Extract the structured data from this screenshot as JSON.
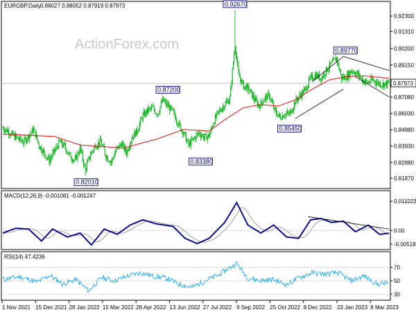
{
  "header": {
    "symbol": "EURGBP,Daily",
    "ohlc": "0.88027 0.88052 0.87919 0.87973",
    "watermark": "ActionForex.com"
  },
  "colors": {
    "candle_up": "#00af0f",
    "candle_down": "#00af0f",
    "sma": "#e01010",
    "macd_main": "#0a0a8c",
    "macd_signal": "#a0a0a0",
    "rsi": "#00a0ff",
    "trendline": "#000000",
    "box": "#000080",
    "grid_level": "#bbbbbb",
    "current_price": "#c0c0c0"
  },
  "chart_data": [
    {
      "type": "candlestick",
      "title": "EURGBP,Daily",
      "ylim": [
        0.8124,
        0.932
      ],
      "yticks": [
        "0.92300",
        "0.91310",
        "0.90200",
        "0.89150",
        "0.87080",
        "0.86030",
        "0.84980",
        "0.83930",
        "0.82880",
        "0.81870"
      ],
      "current_price_label": "0.87973",
      "current_price": 0.87973,
      "x_ticks": [
        "1 Nov 2021",
        "15 Dec 2021",
        "28 Jan 2022",
        "15 Mar 2022",
        "28 Apr 2022",
        "13 Jun 2022",
        "27 Jul 2022",
        "9 Sep 2022",
        "25 Oct 2022",
        "8 Dec 2022",
        "23 Jan 2023",
        "8 Mar 2023"
      ],
      "annotations": [
        {
          "text": "0.92670",
          "value": 0.9267
        },
        {
          "text": "0.89770",
          "value": 0.8977
        },
        {
          "text": "0.87200",
          "value": 0.872
        },
        {
          "text": "0.85450",
          "value": 0.8545
        },
        {
          "text": "0.83380",
          "value": 0.8338
        },
        {
          "text": "0.82010",
          "value": 0.8201
        }
      ],
      "price_anchors": [
        [
          0,
          0.851
        ],
        [
          6,
          0.849
        ],
        [
          12,
          0.846
        ],
        [
          18,
          0.844
        ],
        [
          24,
          0.842
        ],
        [
          30,
          0.846
        ],
        [
          36,
          0.85
        ],
        [
          42,
          0.84
        ],
        [
          48,
          0.835
        ],
        [
          54,
          0.83
        ],
        [
          60,
          0.836
        ],
        [
          66,
          0.842
        ],
        [
          72,
          0.839
        ],
        [
          78,
          0.833
        ],
        [
          84,
          0.83
        ],
        [
          90,
          0.838
        ],
        [
          96,
          0.824
        ],
        [
          102,
          0.834
        ],
        [
          108,
          0.84
        ],
        [
          114,
          0.842
        ],
        [
          120,
          0.833
        ],
        [
          126,
          0.829
        ],
        [
          132,
          0.837
        ],
        [
          138,
          0.841
        ],
        [
          144,
          0.835
        ],
        [
          150,
          0.845
        ],
        [
          156,
          0.849
        ],
        [
          162,
          0.858
        ],
        [
          168,
          0.862
        ],
        [
          174,
          0.864
        ],
        [
          180,
          0.86
        ],
        [
          186,
          0.869
        ],
        [
          192,
          0.865
        ],
        [
          198,
          0.861
        ],
        [
          204,
          0.854
        ],
        [
          210,
          0.848
        ],
        [
          216,
          0.84
        ],
        [
          222,
          0.844
        ],
        [
          228,
          0.848
        ],
        [
          234,
          0.845
        ],
        [
          240,
          0.846
        ],
        [
          246,
          0.856
        ],
        [
          252,
          0.862
        ],
        [
          258,
          0.866
        ],
        [
          264,
          0.87
        ],
        [
          270,
          0.905
        ],
        [
          274,
          0.885
        ],
        [
          280,
          0.878
        ],
        [
          286,
          0.876
        ],
        [
          292,
          0.87
        ],
        [
          298,
          0.865
        ],
        [
          304,
          0.87
        ],
        [
          310,
          0.872
        ],
        [
          316,
          0.862
        ],
        [
          322,
          0.858
        ],
        [
          328,
          0.86
        ],
        [
          334,
          0.86
        ],
        [
          340,
          0.868
        ],
        [
          346,
          0.872
        ],
        [
          352,
          0.876
        ],
        [
          358,
          0.883
        ],
        [
          364,
          0.885
        ],
        [
          370,
          0.883
        ],
        [
          376,
          0.888
        ],
        [
          382,
          0.892
        ],
        [
          388,
          0.896
        ],
        [
          394,
          0.883
        ],
        [
          400,
          0.884
        ],
        [
          406,
          0.888
        ],
        [
          412,
          0.886
        ],
        [
          418,
          0.882
        ],
        [
          424,
          0.88
        ],
        [
          430,
          0.882
        ],
        [
          436,
          0.88
        ],
        [
          442,
          0.879
        ],
        [
          448,
          0.8797
        ]
      ],
      "sma_anchors": [
        [
          0,
          0.847
        ],
        [
          60,
          0.8455
        ],
        [
          90,
          0.84
        ],
        [
          140,
          0.838
        ],
        [
          180,
          0.844
        ],
        [
          210,
          0.85
        ],
        [
          240,
          0.849
        ],
        [
          260,
          0.857
        ],
        [
          280,
          0.864
        ],
        [
          300,
          0.866
        ],
        [
          320,
          0.865
        ],
        [
          340,
          0.869
        ],
        [
          360,
          0.876
        ],
        [
          380,
          0.882
        ],
        [
          400,
          0.884
        ],
        [
          420,
          0.8845
        ],
        [
          449,
          0.883
        ]
      ],
      "channel_upper": [
        [
          360,
          0.881
        ],
        [
          396,
          0.897
        ]
      ],
      "channel_lower": [
        [
          340,
          0.857
        ],
        [
          396,
          0.876
        ]
      ],
      "falling_upper": [
        [
          396,
          0.897
        ],
        [
          449,
          0.888
        ]
      ],
      "falling_lower": [
        [
          410,
          0.884
        ],
        [
          449,
          0.871
        ]
      ]
    },
    {
      "type": "line",
      "title": "MACD(12,26,9) -0.001081 -0.001247",
      "ylim": [
        -0.007,
        0.0116
      ],
      "yticks": [
        "0.011023",
        "0.00",
        "-0.005182"
      ],
      "macd_anchors": [
        [
          0,
          -0.001
        ],
        [
          15,
          0.0008
        ],
        [
          30,
          0.0005
        ],
        [
          45,
          -0.004
        ],
        [
          58,
          0.0005
        ],
        [
          75,
          -0.0025
        ],
        [
          90,
          -0.001
        ],
        [
          103,
          -0.0055
        ],
        [
          118,
          0.0005
        ],
        [
          133,
          -0.0015
        ],
        [
          148,
          0.002
        ],
        [
          163,
          0.004
        ],
        [
          178,
          0.0025
        ],
        [
          198,
          0.0015
        ],
        [
          212,
          -0.003
        ],
        [
          226,
          -0.005
        ],
        [
          240,
          -0.003
        ],
        [
          258,
          0.003
        ],
        [
          272,
          0.0105
        ],
        [
          285,
          0.002
        ],
        [
          300,
          -0.001
        ],
        [
          315,
          0.002
        ],
        [
          330,
          -0.0025
        ],
        [
          344,
          -0.003
        ],
        [
          358,
          0.004
        ],
        [
          370,
          0.0045
        ],
        [
          382,
          0.003
        ],
        [
          396,
          0.0035
        ],
        [
          410,
          -0.0005
        ],
        [
          425,
          0.002
        ],
        [
          438,
          -0.0015
        ],
        [
          449,
          -0.0011
        ]
      ],
      "trendline": [
        [
          355,
          0.0052
        ],
        [
          449,
          0.0005
        ]
      ]
    },
    {
      "type": "line",
      "title": "RSI(14) 47.4236",
      "ylim": [
        22,
        80
      ],
      "yticks": [
        "70",
        "50",
        "30"
      ],
      "rsi_anchors": [
        [
          0,
          52
        ],
        [
          20,
          56
        ],
        [
          40,
          48
        ],
        [
          55,
          58
        ],
        [
          70,
          45
        ],
        [
          85,
          52
        ],
        [
          100,
          35
        ],
        [
          115,
          55
        ],
        [
          130,
          50
        ],
        [
          145,
          57
        ],
        [
          160,
          62
        ],
        [
          175,
          57
        ],
        [
          190,
          54
        ],
        [
          205,
          45
        ],
        [
          220,
          40
        ],
        [
          235,
          50
        ],
        [
          250,
          58
        ],
        [
          262,
          68
        ],
        [
          272,
          76
        ],
        [
          285,
          54
        ],
        [
          300,
          50
        ],
        [
          315,
          52
        ],
        [
          330,
          44
        ],
        [
          345,
          55
        ],
        [
          360,
          62
        ],
        [
          375,
          60
        ],
        [
          390,
          62
        ],
        [
          405,
          50
        ],
        [
          420,
          57
        ],
        [
          435,
          45
        ],
        [
          449,
          47
        ]
      ]
    }
  ]
}
